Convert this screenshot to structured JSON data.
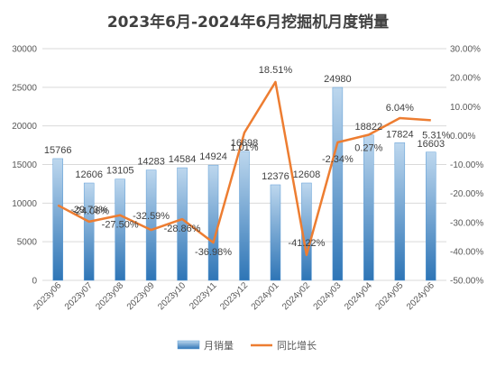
{
  "chart_data": {
    "type": "bar+line",
    "title": "2023年6月-2024年6月挖掘机月度销量",
    "categories": [
      "2023y06",
      "2023y07",
      "2023y08",
      "2023y09",
      "2023y10",
      "2023y11",
      "2023y12",
      "2024y01",
      "2024y02",
      "2024y03",
      "2024y04",
      "2024y05",
      "2024y06"
    ],
    "series": [
      {
        "name": "月销量",
        "type": "bar",
        "axis": "left",
        "values": [
          15766,
          12606,
          13105,
          14283,
          14584,
          14924,
          16698,
          12376,
          12608,
          24980,
          18822,
          17824,
          16603
        ],
        "labels": [
          "15766",
          "12606",
          "13105",
          "14283",
          "14584",
          "14924",
          "16698",
          "12376",
          "12608",
          "24980",
          "18822",
          "17824",
          "16603"
        ]
      },
      {
        "name": "同比增长",
        "type": "line",
        "axis": "right",
        "values": [
          -24.06,
          -29.73,
          -27.5,
          -32.59,
          -28.86,
          -36.98,
          1.01,
          18.51,
          -41.22,
          -2.34,
          0.27,
          6.04,
          5.31
        ],
        "labels": [
          "-24.06%",
          "-29.73%",
          "-27.50%",
          "-32.59%",
          "-28.86%",
          "-36.98%",
          "1.01%",
          "18.51%",
          "-41.22%",
          "-2.34%",
          "0.27%",
          "6.04%",
          "5.31%"
        ]
      }
    ],
    "left_axis": {
      "min": 0,
      "max": 30000,
      "ticks": [
        "0",
        "5000",
        "10000",
        "15000",
        "20000",
        "25000",
        "30000"
      ]
    },
    "right_axis": {
      "min": -50,
      "max": 30,
      "ticks": [
        "-50.00%",
        "-40.00%",
        "-30.00%",
        "-20.00%",
        "-10.00%",
        "0.00%",
        "10.00%",
        "20.00%",
        "30.00%"
      ]
    },
    "grid": true,
    "legend_position": "bottom",
    "colors": {
      "bar_top": "#bdd7ee",
      "bar_bottom": "#2e75b6",
      "line": "#ed7d31",
      "grid": "#d9d9d9"
    }
  }
}
